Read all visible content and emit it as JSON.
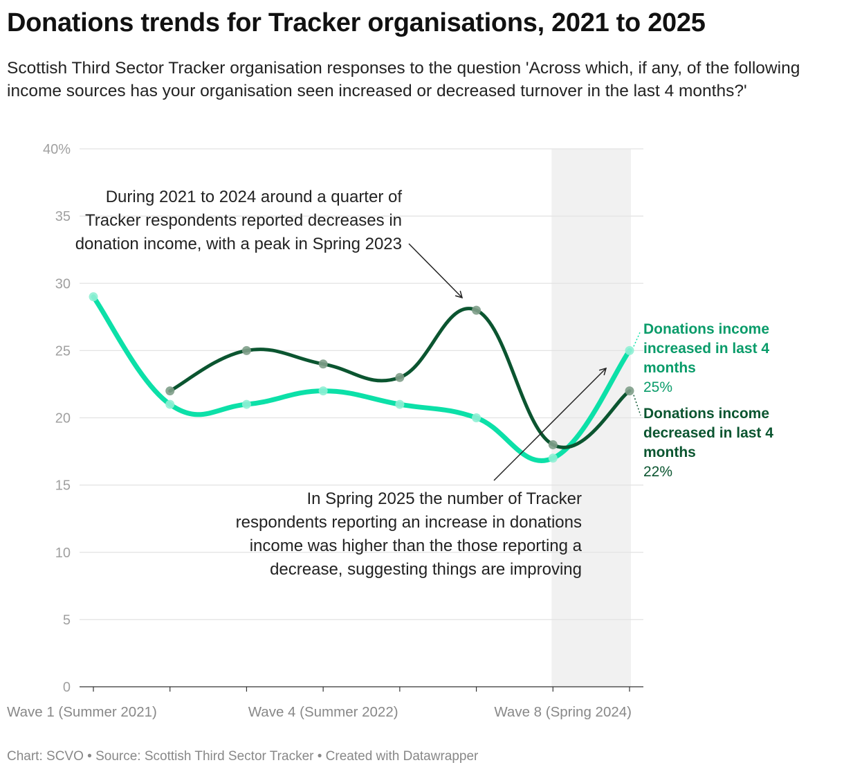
{
  "title": "Donations trends for Tracker organisations, 2021 to 2025",
  "subtitle": "Scottish Third Sector Tracker organisation responses to the question 'Across which, if any, of the following income sources has your organisation seen increased or decreased turnover in the last 4 months?'",
  "footer": "Chart: SCVO • Source: Scottish Third Sector Tracker • Created with Datawrapper",
  "colors": {
    "increased": "#0ce0a8",
    "decreased": "#0b5530",
    "increased_label": "#0a9c6a",
    "highlight_band": "#f1f1f1",
    "gridline": "#e2e2e2",
    "axis_text": "#a0a0a0"
  },
  "annotations": {
    "decreases": "During 2021 to 2024 around a quarter of Tracker respondents reported decreases in donation income, with a peak in Spring 2023",
    "increase": "In Spring 2025 the number of Tracker respondents reporting an increase in donations income was higher than the those reporting a decrease, suggesting things are improving"
  },
  "chart_data": {
    "type": "line",
    "x": [
      1,
      2,
      3,
      4,
      5,
      6,
      7,
      8
    ],
    "x_tick_labels": [
      {
        "x": 1,
        "label": "Wave 1 (Summer 2021)"
      },
      {
        "x": 4,
        "label": "Wave 4 (Summer 2022)"
      },
      {
        "x": 7,
        "label": "Wave 8 (Spring 2024)"
      }
    ],
    "ylim": [
      0,
      40
    ],
    "y_ticks": [
      0,
      5,
      10,
      15,
      20,
      25,
      30,
      35,
      40
    ],
    "y_tick_labels": [
      "0",
      "5",
      "10",
      "15",
      "20",
      "25",
      "30",
      "35",
      "40%"
    ],
    "grid": true,
    "highlight_band_x": [
      7,
      8
    ],
    "series": [
      {
        "name": "Donations income increased in last 4 months",
        "value_label": "25%",
        "color": "#0ce0a8",
        "values": [
          29,
          21,
          21,
          22,
          21,
          20,
          17,
          25
        ]
      },
      {
        "name": "Donations income decreased in last 4 months",
        "value_label": "22%",
        "color": "#0b5530",
        "values": [
          null,
          22,
          25,
          24,
          23,
          28,
          18,
          22
        ]
      }
    ]
  }
}
